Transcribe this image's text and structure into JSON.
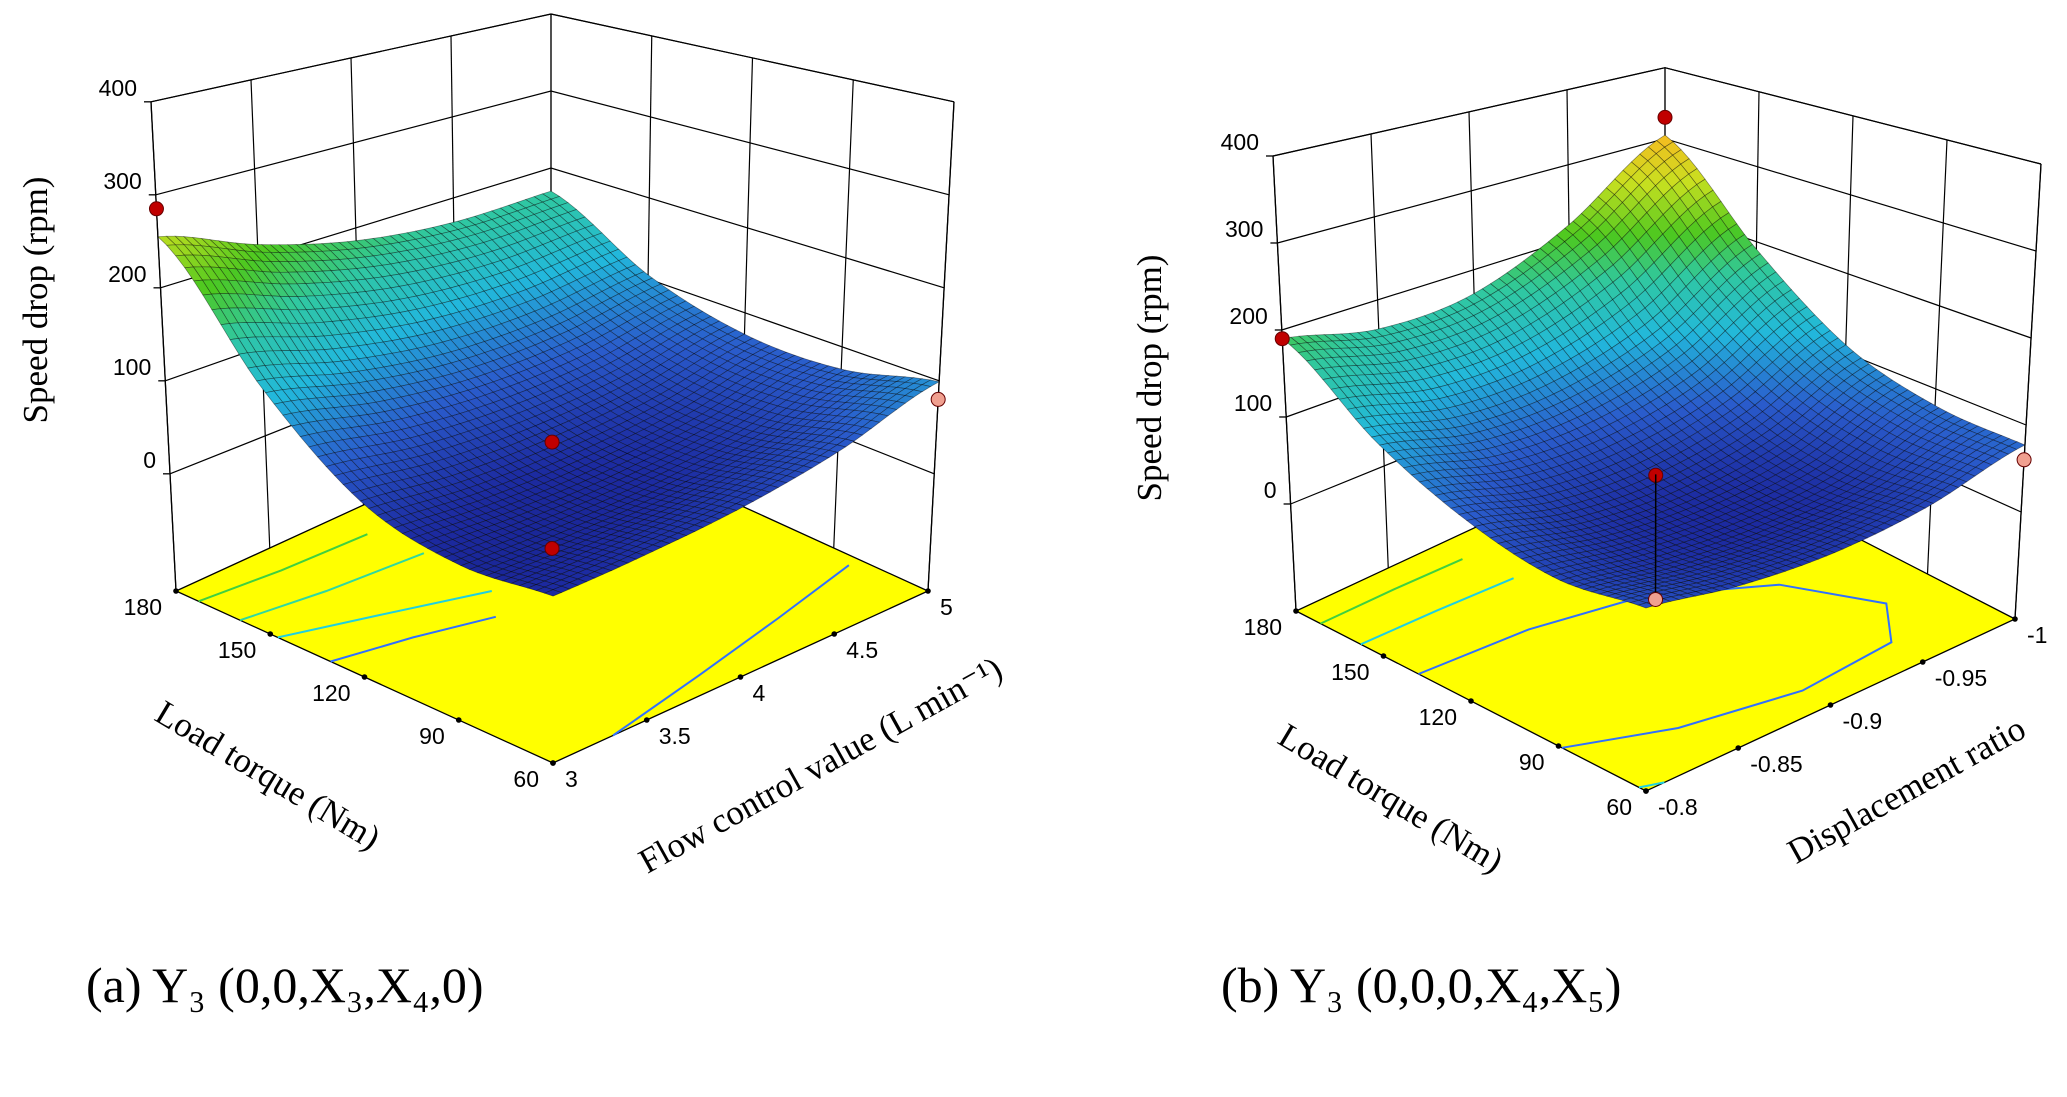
{
  "chart_data": [
    {
      "type": "surface",
      "caption": "(a) Y₃ (0,0,X₃,X₄,0)",
      "zlabel": "Speed drop  (rpm)",
      "xlabel": "Load torque  (Nm)",
      "ylabel": "Flow control value  (L min⁻¹)",
      "x_range": [
        60,
        180
      ],
      "x_ticks": [
        "60",
        "90",
        "120",
        "150",
        "180"
      ],
      "y_range": [
        3,
        5
      ],
      "y_ticks": [
        "3",
        "3.5",
        "4",
        "4.5",
        "5"
      ],
      "z_ticks": [
        "0",
        "100",
        "200",
        "300",
        "400"
      ],
      "z_range": [
        -126,
        400
      ],
      "z_grid_rows_by_x_cols_by_y": [
        [
          30,
          35,
          45,
          65,
          99
        ],
        [
          25,
          25,
          30,
          45,
          75
        ],
        [
          50,
          40,
          40,
          50,
          75
        ],
        [
          130,
          105,
          90,
          90,
          105
        ],
        [
          255,
          215,
          185,
          170,
          170
        ]
      ],
      "design_points": [
        {
          "x": 180,
          "y": 3,
          "z": 285,
          "color": "#c00000"
        },
        {
          "x": 120,
          "y": 4,
          "z": 35,
          "color": "#c00000"
        },
        {
          "x": 120,
          "y": 4,
          "z": -80,
          "color": "#c00000"
        },
        {
          "x": 60,
          "y": 5,
          "z": 80,
          "color": "#f0a090"
        }
      ],
      "floor_color": "#ffff00"
    },
    {
      "type": "surface",
      "caption": "(b) Y₃ (0,0,0,X₄,X₅)",
      "zlabel": "Speed drop  (rpm)",
      "xlabel": "Load torque  (Nm)",
      "ylabel": "Displacement ratio",
      "x_range": [
        60,
        180
      ],
      "x_ticks": [
        "60",
        "90",
        "120",
        "150",
        "180"
      ],
      "y_range": [
        -0.8,
        -1
      ],
      "y_ticks": [
        "-0.8",
        "-0.85",
        "-0.9",
        "-0.95",
        "-1"
      ],
      "z_ticks": [
        "0",
        "100",
        "200",
        "300",
        "400"
      ],
      "z_range": [
        -123,
        400
      ],
      "z_grid_rows_by_x_cols_by_y": [
        [
          60,
          45,
          40,
          50,
          77
        ],
        [
          50,
          35,
          30,
          40,
          80
        ],
        [
          70,
          45,
          40,
          60,
          110
        ],
        [
          115,
          90,
          90,
          120,
          190
        ],
        [
          190,
          165,
          170,
          220,
          305
        ]
      ],
      "design_points": [
        {
          "x": 180,
          "y": -1,
          "z": 330,
          "color": "#c00000"
        },
        {
          "x": 180,
          "y": -0.8,
          "z": 190,
          "color": "#c00000"
        },
        {
          "x": 120,
          "y": -0.9,
          "z": 39,
          "color": "#c00000"
        },
        {
          "x": 60,
          "y": -1,
          "z": 60,
          "color": "#f0a090"
        },
        {
          "x": 120,
          "y": -0.9,
          "z": -105,
          "color": "#f0a090"
        }
      ],
      "floor_color": "#ffff00"
    }
  ]
}
